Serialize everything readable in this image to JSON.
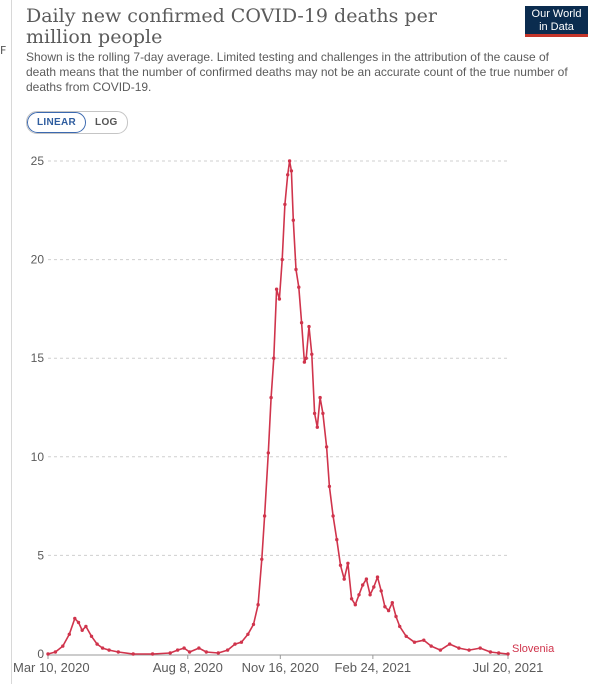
{
  "header": {
    "title": "Daily new confirmed COVID-19 deaths per million people",
    "subtitle": "Shown is the rolling 7-day average. Limited testing and challenges in the attribution of the cause of death means that the number of confirmed deaths may not be an accurate count of the true number of deaths from COVID-19.",
    "logo_line1": "Our World",
    "logo_line2": "in Data",
    "left_mark": "F"
  },
  "scale_toggle": {
    "linear_label": "LINEAR",
    "log_label": "LOG",
    "selected": "LINEAR"
  },
  "colors": {
    "series": "#d0344c",
    "grid": "#cfcfcf",
    "text": "#5b5b5b"
  },
  "chart_data": {
    "type": "line",
    "title": "Daily new confirmed COVID-19 deaths per million people",
    "xlabel": "",
    "ylabel": "",
    "ylim": [
      0,
      25
    ],
    "yticks": [
      0,
      5,
      10,
      15,
      20,
      25
    ],
    "xlim": [
      "2020-03-10",
      "2021-07-20"
    ],
    "xticks": [
      {
        "date": "2020-03-10",
        "label": "Mar 10, 2020"
      },
      {
        "date": "2020-08-08",
        "label": "Aug 8, 2020"
      },
      {
        "date": "2020-11-16",
        "label": "Nov 16, 2020"
      },
      {
        "date": "2021-02-24",
        "label": "Feb 24, 2021"
      },
      {
        "date": "2021-07-20",
        "label": "Jul 20, 2021"
      }
    ],
    "grid": "horizontal dashed",
    "series": [
      {
        "name": "Slovenia",
        "points": [
          [
            "2020-03-10",
            0
          ],
          [
            "2020-03-18",
            0.1
          ],
          [
            "2020-03-26",
            0.4
          ],
          [
            "2020-04-02",
            1.0
          ],
          [
            "2020-04-08",
            1.8
          ],
          [
            "2020-04-12",
            1.6
          ],
          [
            "2020-04-16",
            1.2
          ],
          [
            "2020-04-20",
            1.4
          ],
          [
            "2020-04-26",
            0.9
          ],
          [
            "2020-05-02",
            0.5
          ],
          [
            "2020-05-08",
            0.3
          ],
          [
            "2020-05-15",
            0.2
          ],
          [
            "2020-05-25",
            0.1
          ],
          [
            "2020-06-10",
            0
          ],
          [
            "2020-07-01",
            0
          ],
          [
            "2020-07-20",
            0.05
          ],
          [
            "2020-07-28",
            0.2
          ],
          [
            "2020-08-04",
            0.3
          ],
          [
            "2020-08-10",
            0.1
          ],
          [
            "2020-08-20",
            0.3
          ],
          [
            "2020-08-28",
            0.1
          ],
          [
            "2020-09-10",
            0.05
          ],
          [
            "2020-09-20",
            0.2
          ],
          [
            "2020-09-28",
            0.5
          ],
          [
            "2020-10-05",
            0.6
          ],
          [
            "2020-10-12",
            1.0
          ],
          [
            "2020-10-18",
            1.5
          ],
          [
            "2020-10-23",
            2.5
          ],
          [
            "2020-10-27",
            4.8
          ],
          [
            "2020-10-30",
            7.0
          ],
          [
            "2020-11-03",
            10.2
          ],
          [
            "2020-11-06",
            13.0
          ],
          [
            "2020-11-09",
            15.0
          ],
          [
            "2020-11-12",
            18.5
          ],
          [
            "2020-11-15",
            18.0
          ],
          [
            "2020-11-18",
            20.0
          ],
          [
            "2020-11-21",
            22.8
          ],
          [
            "2020-11-24",
            24.3
          ],
          [
            "2020-11-26",
            25.0
          ],
          [
            "2020-11-28",
            24.5
          ],
          [
            "2020-11-30",
            22.0
          ],
          [
            "2020-12-03",
            19.5
          ],
          [
            "2020-12-06",
            18.6
          ],
          [
            "2020-12-09",
            16.8
          ],
          [
            "2020-12-12",
            14.8
          ],
          [
            "2020-12-14",
            15.0
          ],
          [
            "2020-12-17",
            16.6
          ],
          [
            "2020-12-20",
            15.2
          ],
          [
            "2020-12-23",
            12.2
          ],
          [
            "2020-12-26",
            11.5
          ],
          [
            "2020-12-29",
            13.0
          ],
          [
            "2021-01-01",
            12.2
          ],
          [
            "2021-01-05",
            10.5
          ],
          [
            "2021-01-08",
            8.5
          ],
          [
            "2021-01-12",
            7.0
          ],
          [
            "2021-01-16",
            5.8
          ],
          [
            "2021-01-20",
            4.5
          ],
          [
            "2021-01-24",
            3.8
          ],
          [
            "2021-01-28",
            4.6
          ],
          [
            "2021-02-01",
            2.8
          ],
          [
            "2021-02-05",
            2.5
          ],
          [
            "2021-02-09",
            3.0
          ],
          [
            "2021-02-13",
            3.5
          ],
          [
            "2021-02-17",
            3.8
          ],
          [
            "2021-02-21",
            3.0
          ],
          [
            "2021-02-25",
            3.4
          ],
          [
            "2021-03-01",
            3.9
          ],
          [
            "2021-03-05",
            3.2
          ],
          [
            "2021-03-09",
            2.4
          ],
          [
            "2021-03-13",
            2.2
          ],
          [
            "2021-03-17",
            2.6
          ],
          [
            "2021-03-21",
            1.9
          ],
          [
            "2021-03-25",
            1.4
          ],
          [
            "2021-04-01",
            0.9
          ],
          [
            "2021-04-10",
            0.6
          ],
          [
            "2021-04-20",
            0.7
          ],
          [
            "2021-04-28",
            0.4
          ],
          [
            "2021-05-08",
            0.2
          ],
          [
            "2021-05-18",
            0.5
          ],
          [
            "2021-05-28",
            0.3
          ],
          [
            "2021-06-08",
            0.2
          ],
          [
            "2021-06-20",
            0.3
          ],
          [
            "2021-07-01",
            0.1
          ],
          [
            "2021-07-10",
            0.05
          ],
          [
            "2021-07-20",
            0
          ]
        ]
      }
    ]
  }
}
